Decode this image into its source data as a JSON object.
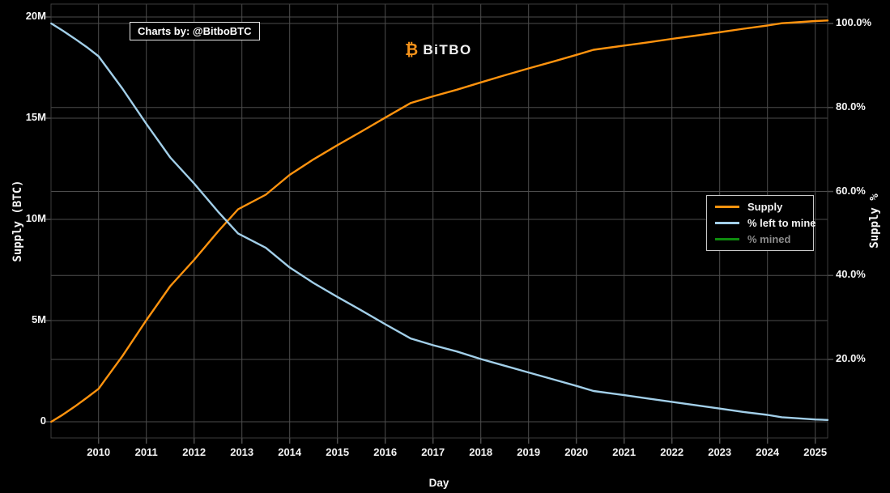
{
  "branding": {
    "annotation": "Charts by: @BitboBTC",
    "logo_icon": "₿",
    "logo_text": "BiTBO"
  },
  "legend": {
    "items": [
      {
        "label": "Supply",
        "color": "#ff930e",
        "active": true
      },
      {
        "label": "% left to mine",
        "color": "#a2cfe9",
        "active": true
      },
      {
        "label": "% mined",
        "color": "#0e8c0e",
        "active": false
      }
    ]
  },
  "colors": {
    "background": "#000000",
    "grid": "#4d4d4d",
    "spine": "#444444",
    "tick_text": "#f5f5f5",
    "disabled_text": "#8c8c8c",
    "supply_line": "#ff930e",
    "pct_left_line": "#a2cfe9",
    "pct_mined_line": "#0e8c0e"
  },
  "chart_data": {
    "type": "line",
    "x_axis": {
      "label": "Day",
      "tick_years": [
        2010,
        2011,
        2012,
        2013,
        2014,
        2015,
        2016,
        2017,
        2018,
        2019,
        2020,
        2021,
        2022,
        2023,
        2024,
        2025
      ],
      "range_years": [
        2009.01,
        2025.26
      ],
      "grid": true
    },
    "y_left_axis": {
      "label": "Supply (BTC)",
      "ticks": [
        {
          "label": "0",
          "value": 0
        },
        {
          "label": "5M",
          "value": 5
        },
        {
          "label": "10M",
          "value": 10
        },
        {
          "label": "15M",
          "value": 15
        },
        {
          "label": "20M",
          "value": 20
        }
      ],
      "range_m_btc": [
        0,
        20
      ]
    },
    "y_right_axis": {
      "label": "Supply %",
      "ticks": [
        {
          "label": "20.0%",
          "value": 20
        },
        {
          "label": "40.0%",
          "value": 40
        },
        {
          "label": "60.0%",
          "value": 60
        },
        {
          "label": "80.0%",
          "value": 80
        },
        {
          "label": "100.0%",
          "value": 100
        }
      ],
      "range_pct": [
        0,
        100
      ]
    },
    "series": [
      {
        "name": "Supply",
        "axis": "left",
        "unit": "M BTC",
        "color": "#ff930e",
        "visible": true,
        "points": [
          [
            2009.01,
            0.0
          ],
          [
            2009.25,
            0.35
          ],
          [
            2009.5,
            0.75
          ],
          [
            2009.75,
            1.18
          ],
          [
            2010.0,
            1.63
          ],
          [
            2010.5,
            3.25
          ],
          [
            2011.0,
            5.02
          ],
          [
            2011.5,
            6.7
          ],
          [
            2012.0,
            8.0
          ],
          [
            2012.5,
            9.4
          ],
          [
            2012.92,
            10.5
          ],
          [
            2013.5,
            11.22
          ],
          [
            2014.0,
            12.2
          ],
          [
            2014.5,
            12.97
          ],
          [
            2015.0,
            13.67
          ],
          [
            2015.5,
            14.34
          ],
          [
            2016.0,
            15.03
          ],
          [
            2016.53,
            15.75
          ],
          [
            2017.0,
            16.08
          ],
          [
            2017.5,
            16.41
          ],
          [
            2018.0,
            16.77
          ],
          [
            2018.5,
            17.12
          ],
          [
            2019.0,
            17.46
          ],
          [
            2019.5,
            17.79
          ],
          [
            2020.0,
            18.13
          ],
          [
            2020.36,
            18.38
          ],
          [
            2021.0,
            18.59
          ],
          [
            2021.5,
            18.75
          ],
          [
            2022.0,
            18.92
          ],
          [
            2022.5,
            19.08
          ],
          [
            2023.0,
            19.25
          ],
          [
            2023.5,
            19.42
          ],
          [
            2024.0,
            19.58
          ],
          [
            2024.3,
            19.69
          ],
          [
            2024.5,
            19.72
          ],
          [
            2025.0,
            19.8
          ],
          [
            2025.26,
            19.83
          ]
        ]
      },
      {
        "name": "% left to mine",
        "axis": "right",
        "unit": "%",
        "color": "#a2cfe9",
        "visible": true,
        "points": [
          [
            2009.01,
            100.0
          ],
          [
            2009.25,
            98.3
          ],
          [
            2009.5,
            96.4
          ],
          [
            2009.75,
            94.4
          ],
          [
            2010.0,
            92.2
          ],
          [
            2010.5,
            84.5
          ],
          [
            2011.0,
            76.1
          ],
          [
            2011.5,
            68.1
          ],
          [
            2012.0,
            61.9
          ],
          [
            2012.5,
            55.2
          ],
          [
            2012.92,
            50.0
          ],
          [
            2013.5,
            46.6
          ],
          [
            2014.0,
            41.9
          ],
          [
            2014.5,
            38.2
          ],
          [
            2015.0,
            34.9
          ],
          [
            2015.5,
            31.7
          ],
          [
            2016.0,
            28.4
          ],
          [
            2016.53,
            25.0
          ],
          [
            2017.0,
            23.4
          ],
          [
            2017.5,
            21.9
          ],
          [
            2018.0,
            20.1
          ],
          [
            2018.5,
            18.5
          ],
          [
            2019.0,
            16.9
          ],
          [
            2019.5,
            15.3
          ],
          [
            2020.0,
            13.7
          ],
          [
            2020.36,
            12.5
          ],
          [
            2021.0,
            11.5
          ],
          [
            2021.5,
            10.7
          ],
          [
            2022.0,
            9.9
          ],
          [
            2022.5,
            9.1
          ],
          [
            2023.0,
            8.3
          ],
          [
            2023.5,
            7.5
          ],
          [
            2024.0,
            6.8
          ],
          [
            2024.3,
            6.25
          ],
          [
            2024.5,
            6.1
          ],
          [
            2025.0,
            5.7
          ],
          [
            2025.26,
            5.6
          ]
        ]
      },
      {
        "name": "% mined",
        "axis": "right",
        "unit": "%",
        "color": "#0e8c0e",
        "visible": false,
        "points": []
      }
    ]
  }
}
